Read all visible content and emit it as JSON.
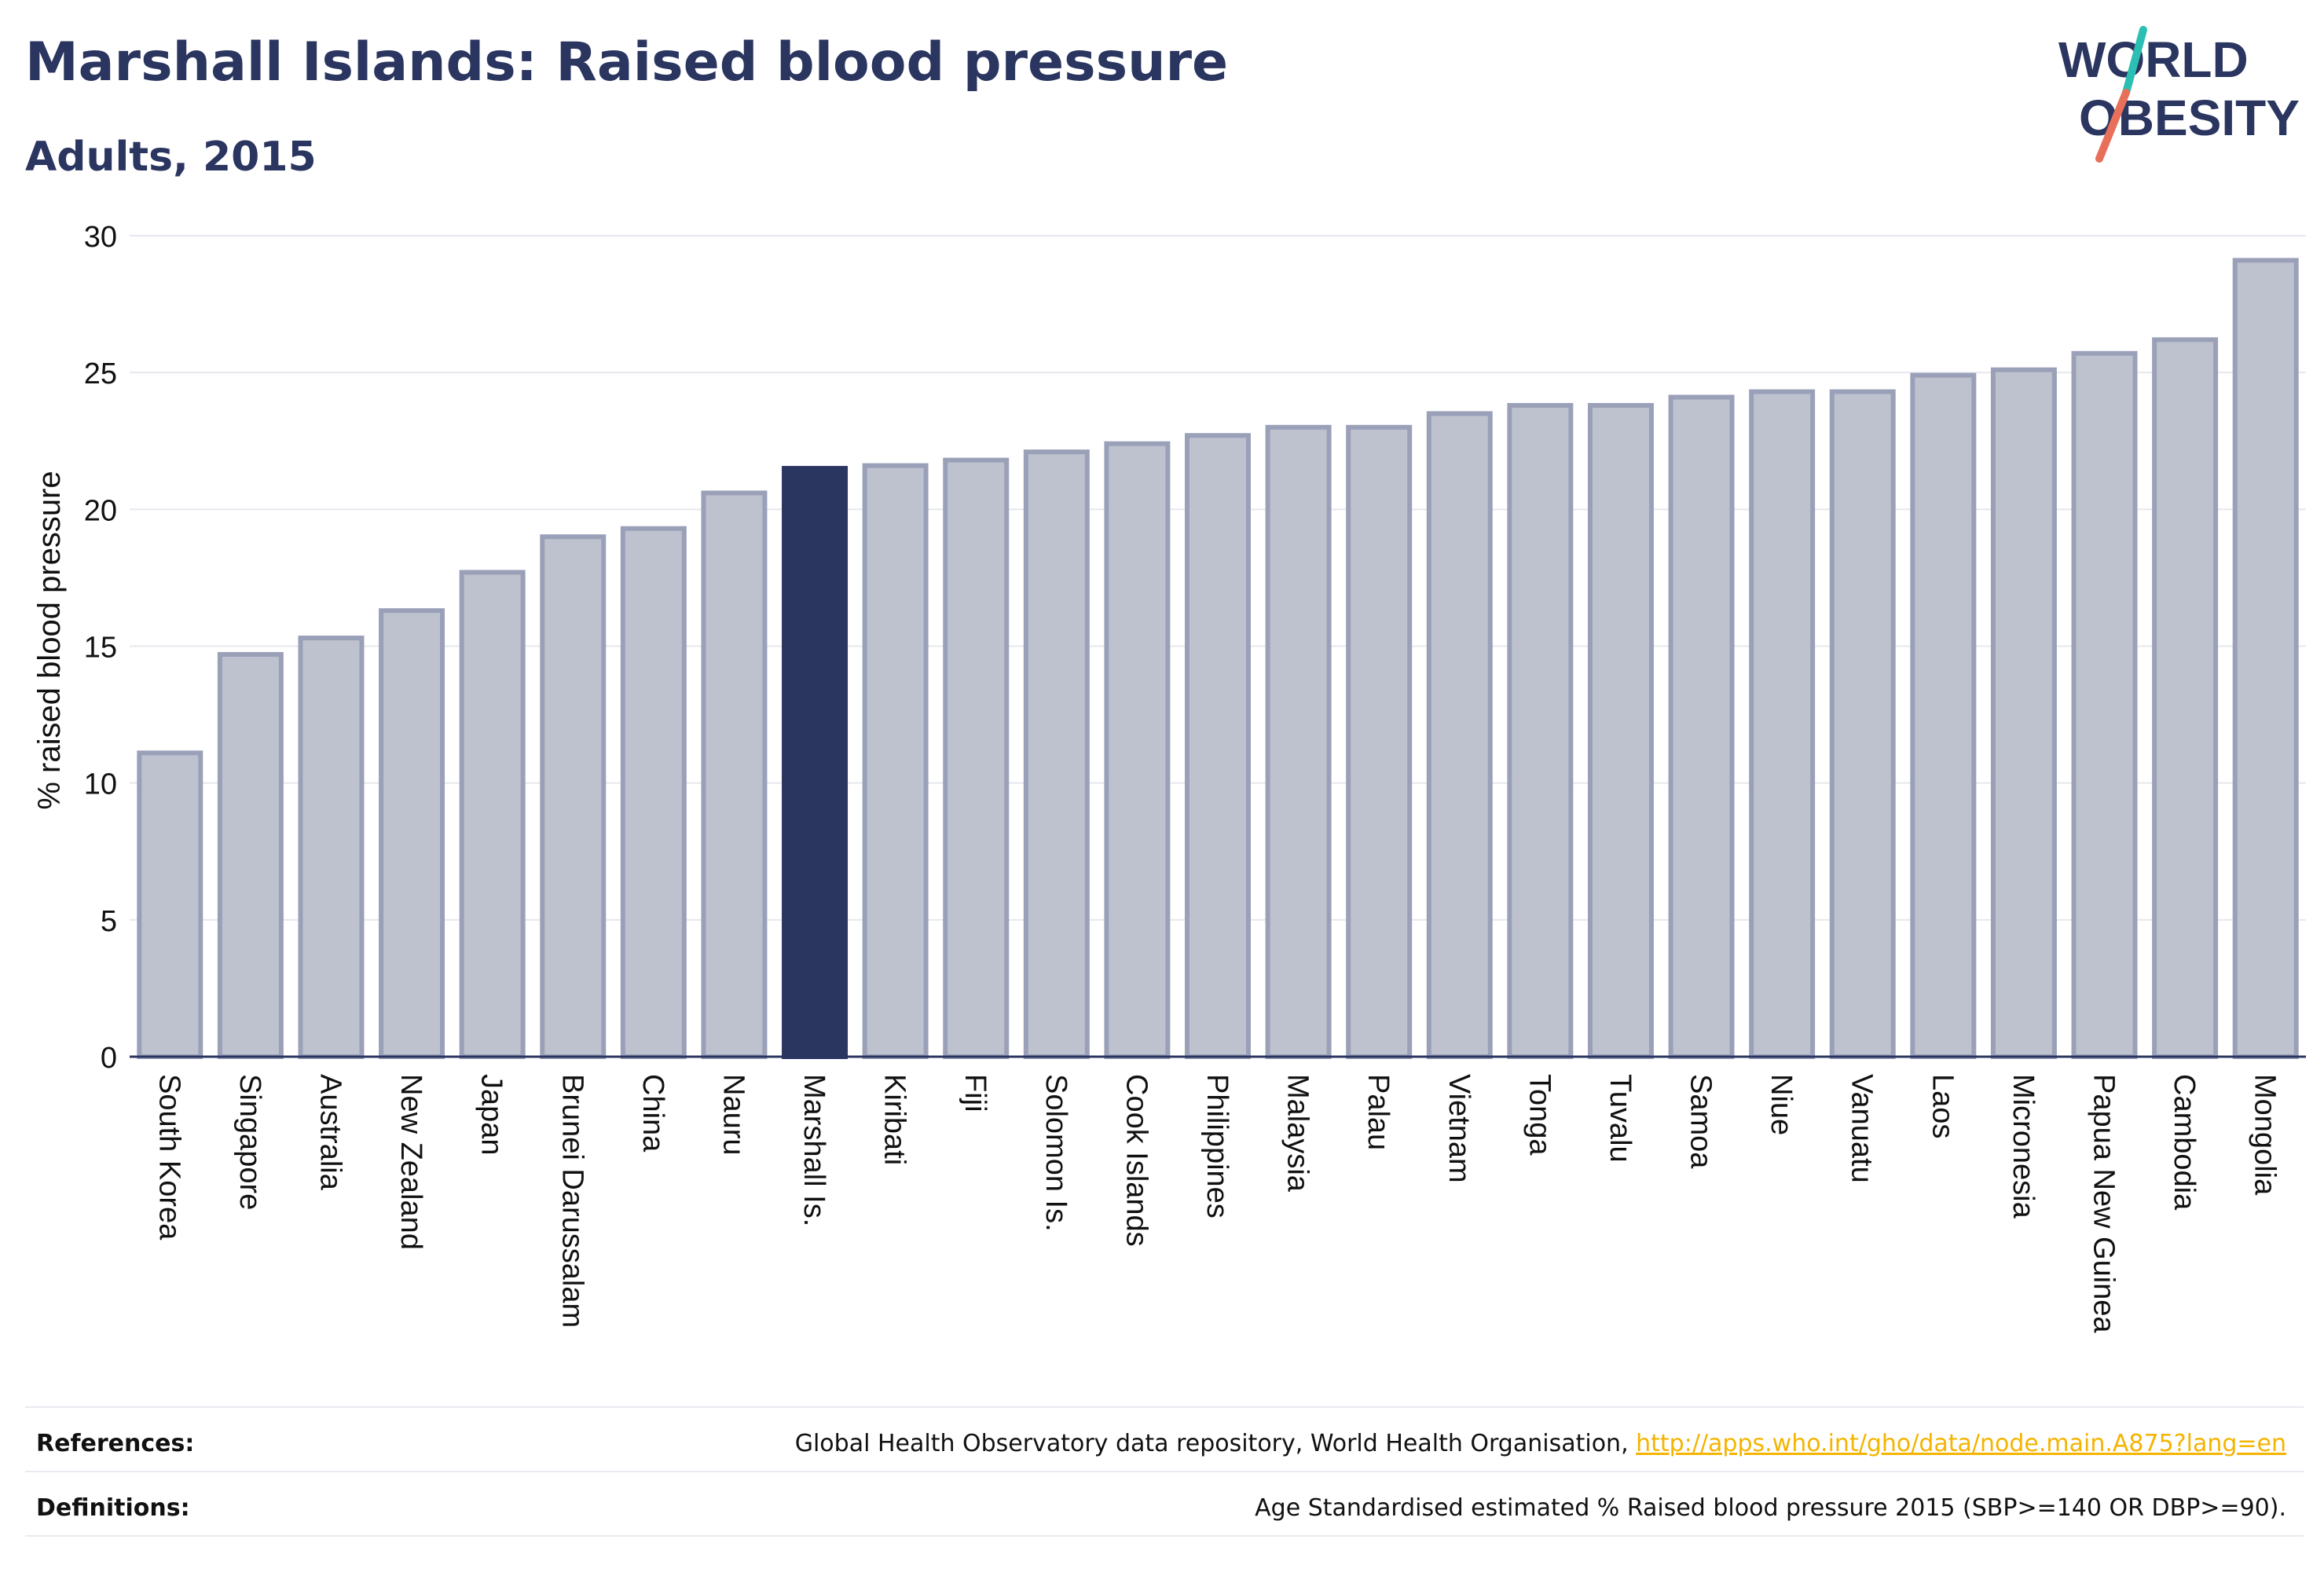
{
  "header": {
    "title": "Marshall Islands: Raised blood pressure",
    "subtitle": "Adults, 2015"
  },
  "logo": {
    "line1": "WORLD",
    "line2": "OBESITY"
  },
  "colors": {
    "text": "#2a3560",
    "bar_default": "#bec2cf",
    "bar_default_stroke": "#9aa0b8",
    "bar_highlight": "#2a3560",
    "grid": "#e6e8ee",
    "link": "#f4b400",
    "logo_teal": "#2bbfb3",
    "logo_coral": "#e8705a"
  },
  "chart_data": {
    "type": "bar",
    "ylabel": "% raised blood pressure",
    "xlabel": "",
    "ylim": [
      0,
      30
    ],
    "yticks": [
      0,
      5,
      10,
      15,
      20,
      25,
      30
    ],
    "grid": true,
    "highlight": "Marshall Is.",
    "categories": [
      "South Korea",
      "Singapore",
      "Australia",
      "New Zealand",
      "Japan",
      "Brunei Darussalam",
      "China",
      "Nauru",
      "Marshall Is.",
      "Kiribati",
      "Fiji",
      "Solomon Is.",
      "Cook Islands",
      "Philippines",
      "Malaysia",
      "Palau",
      "Vietnam",
      "Tonga",
      "Tuvalu",
      "Samoa",
      "Niue",
      "Vanuatu",
      "Laos",
      "Micronesia",
      "Papua New Guinea",
      "Cambodia",
      "Mongolia"
    ],
    "values": [
      11.1,
      14.7,
      15.3,
      16.3,
      17.7,
      19.0,
      19.3,
      20.6,
      21.5,
      21.6,
      21.8,
      22.1,
      22.4,
      22.7,
      23.0,
      23.0,
      23.5,
      23.8,
      23.8,
      24.1,
      24.3,
      24.3,
      24.9,
      25.1,
      25.7,
      26.2,
      29.1
    ]
  },
  "footer": {
    "references_label": "References:",
    "references_text": "Global Health Observatory data repository, World Health Organisation, ",
    "references_link": "http://apps.who.int/gho/data/node.main.A875?lang=en",
    "definitions_label": "Definitions:",
    "definitions_text": "Age Standardised estimated % Raised blood pressure 2015 (SBP>=140 OR DBP>=90)."
  }
}
